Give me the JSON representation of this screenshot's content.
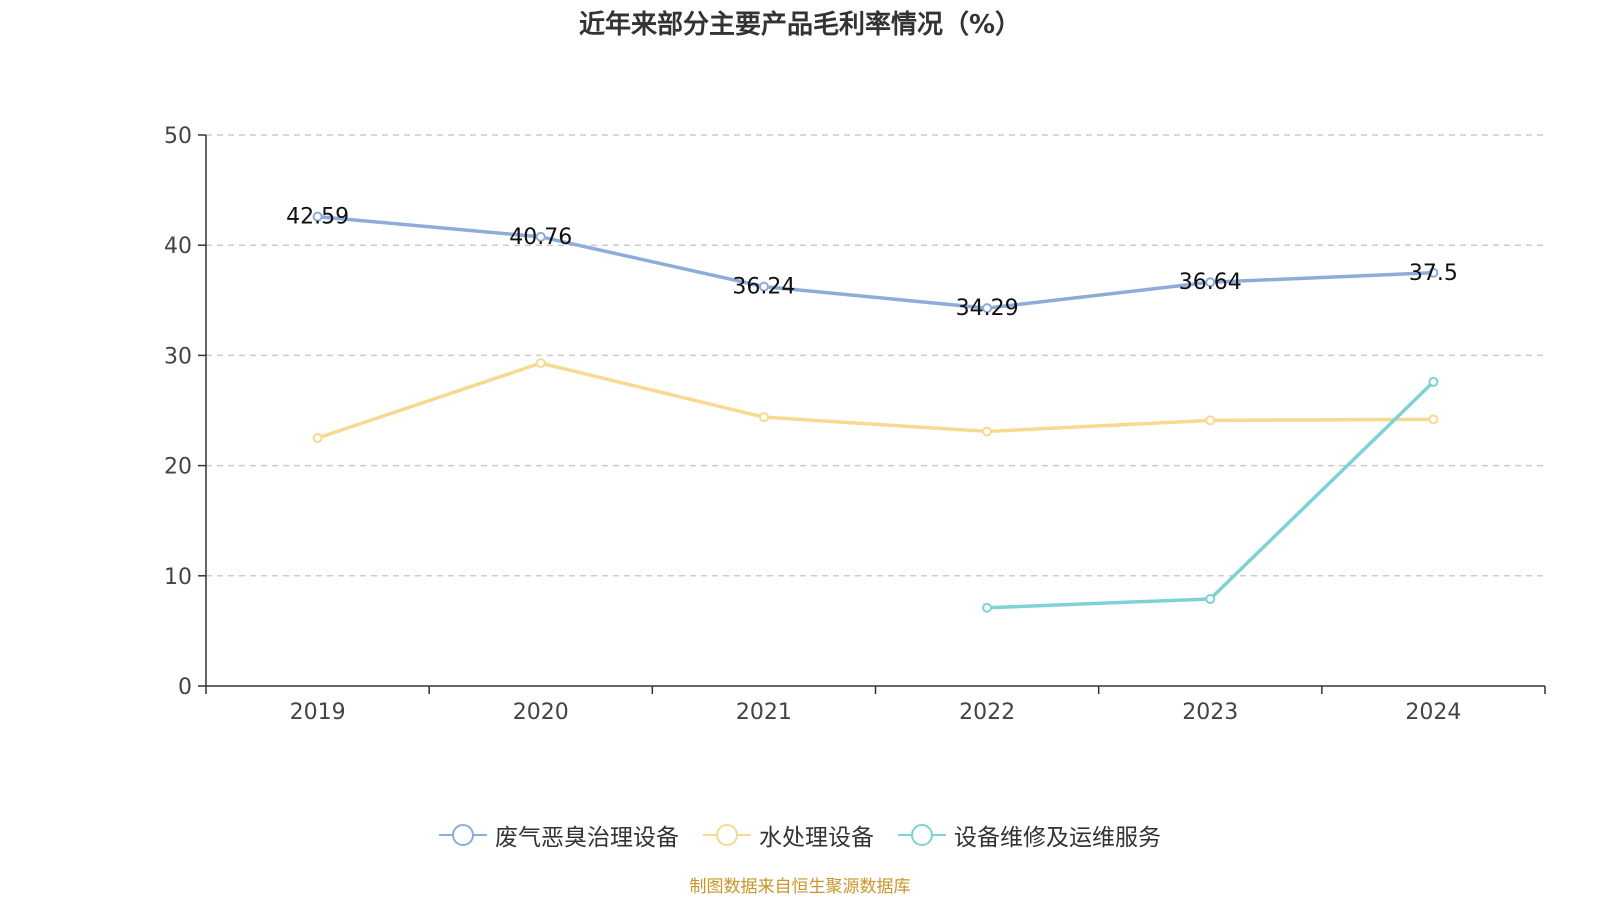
{
  "title": "近年来部分主要产品毛利率情况（%）",
  "source_note": "制图数据来自恒生聚源数据库",
  "chart_data": {
    "type": "line",
    "title": "近年来部分主要产品毛利率情况（%）",
    "categories": [
      "2019",
      "2020",
      "2021",
      "2022",
      "2023",
      "2024"
    ],
    "ylim": [
      0,
      50
    ],
    "yticks": [
      0,
      10,
      20,
      30,
      40,
      50
    ],
    "grid": true,
    "legend_position": "bottom",
    "series": [
      {
        "name": "废气恶臭治理设备",
        "color": "#8eacd8",
        "values": [
          42.59,
          40.76,
          36.24,
          34.29,
          36.64,
          37.5
        ],
        "labels": [
          "42.59",
          "40.76",
          "36.24",
          "34.29",
          "36.64",
          "37.5"
        ]
      },
      {
        "name": "水处理设备",
        "color": "#f9d992",
        "values": [
          22.5,
          29.3,
          24.4,
          23.1,
          24.1,
          24.2
        ]
      },
      {
        "name": "设备维修及运维服务",
        "color": "#7fd2d4",
        "values": [
          null,
          null,
          null,
          7.1,
          7.9,
          27.6
        ]
      }
    ]
  }
}
